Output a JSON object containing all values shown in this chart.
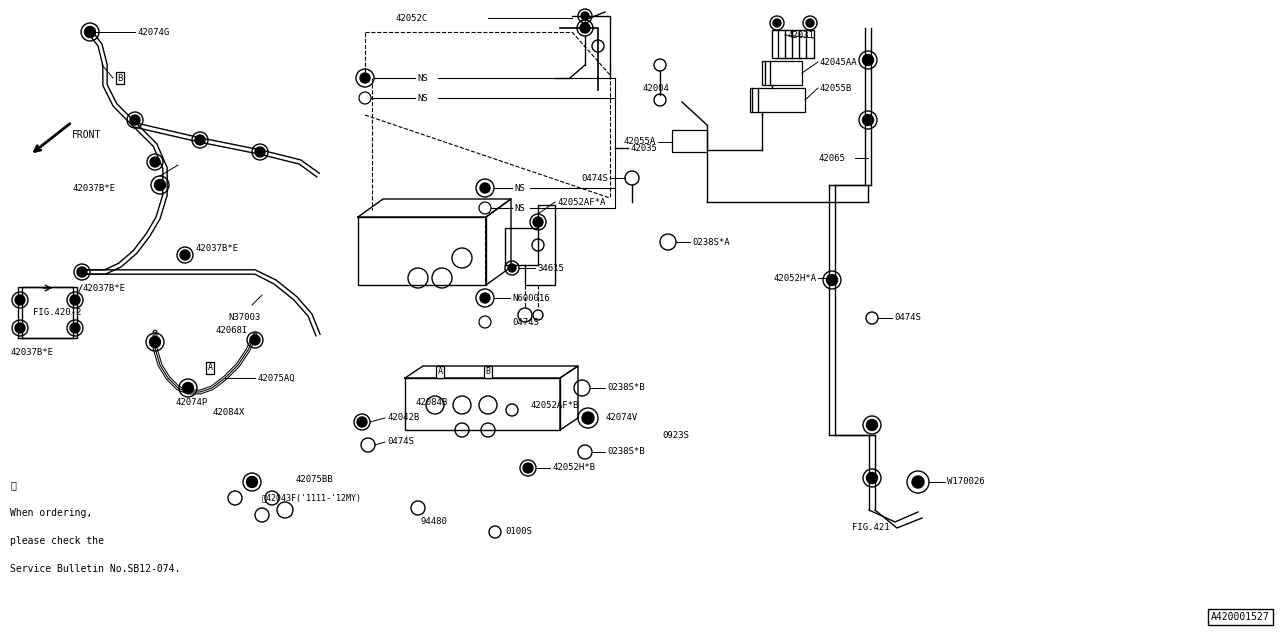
{
  "bg_color": "#ffffff",
  "fig_width": 12.8,
  "fig_height": 6.4,
  "note_lines": [
    "※",
    "When ordering,",
    "please check the",
    "Service Bulletin No.SB12-074."
  ]
}
